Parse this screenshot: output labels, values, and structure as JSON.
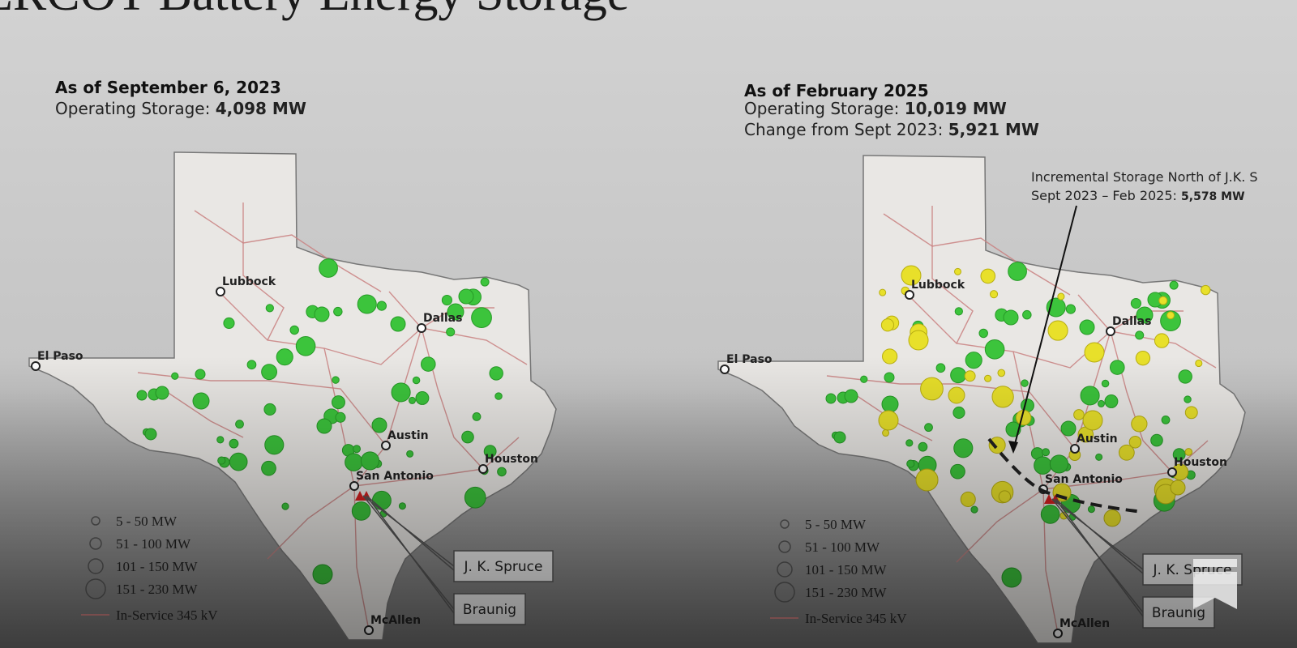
{
  "title": "ERCOT Battery Energy Storage",
  "panels": [
    {
      "heading": "As of September 6, 2023",
      "stats": [
        {
          "label": "Operating Storage: ",
          "value": "4,098 MW"
        }
      ],
      "cities": [
        "Lubbock",
        "El Paso",
        "Dallas",
        "Austin",
        "San Antonio",
        "Houston",
        "McAllen"
      ],
      "plants": [
        "J. K. Spruce",
        "Braunig"
      ],
      "legend": [
        "5 - 50 MW",
        "51 - 100 MW",
        "101 - 150 MW",
        "151 - 230 MW",
        "In-Service 345 kV"
      ]
    },
    {
      "heading": "As of February 2025",
      "stats": [
        {
          "label": "Operating Storage: ",
          "value": "10,019 MW"
        },
        {
          "label": "Change from Sept 2023: ",
          "value": "5,921 MW"
        }
      ],
      "cities": [
        "Lubbock",
        "El Paso",
        "Dallas",
        "Austin",
        "San Antonio",
        "Houston",
        "McAllen"
      ],
      "plants": [
        "J. K. Spruce",
        "Braunig"
      ],
      "legend": [
        "5 - 50 MW",
        "51 - 100 MW",
        "101 - 150 MW",
        "151 - 230 MW",
        "In-Service 345 kV"
      ],
      "annotation": {
        "text": "Incremental Storage North of J.K. S",
        "label": "Sept 2023 – Feb 2025: ",
        "value": "5,578 MW"
      }
    }
  ]
}
